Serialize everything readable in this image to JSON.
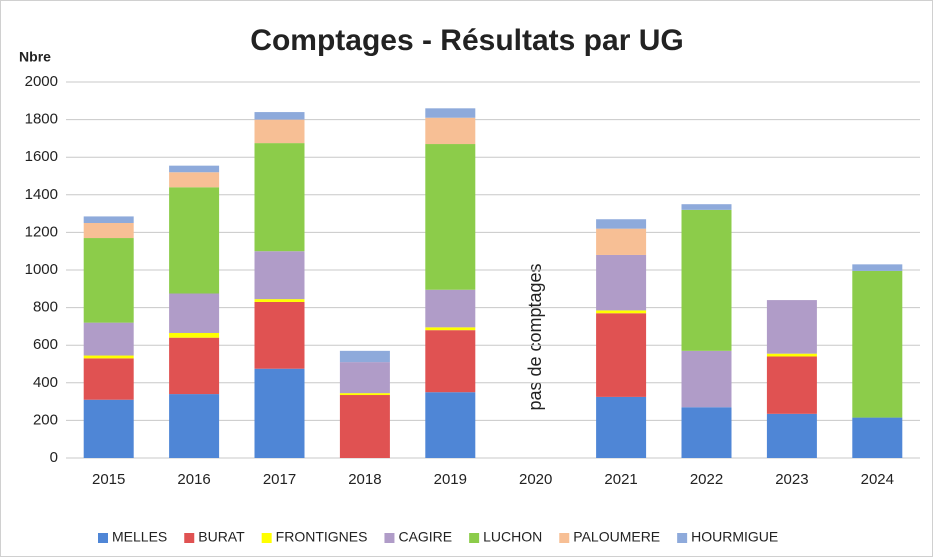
{
  "chart_data": {
    "type": "stacked_bar",
    "title": "Comptages - Résultats par  UG",
    "y_label": "Nbre",
    "annotation": "pas de comptages",
    "categories": [
      "2015",
      "2016",
      "2017",
      "2018",
      "2019",
      "2020",
      "2021",
      "2022",
      "2023",
      "2024"
    ],
    "series": [
      {
        "name": "MELLES",
        "color": "#4f86d6",
        "values": [
          310,
          340,
          475,
          0,
          350,
          null,
          325,
          270,
          235,
          215
        ]
      },
      {
        "name": "BURAT",
        "color": "#e05252",
        "values": [
          220,
          300,
          355,
          335,
          330,
          null,
          445,
          0,
          305,
          0
        ]
      },
      {
        "name": "FRONTIGNES",
        "color": "#ffff00",
        "values": [
          15,
          25,
          15,
          10,
          15,
          null,
          15,
          0,
          15,
          0
        ]
      },
      {
        "name": "CAGIRE",
        "color": "#b09cc8",
        "values": [
          175,
          210,
          255,
          165,
          200,
          null,
          295,
          300,
          285,
          0
        ]
      },
      {
        "name": "LUCHON",
        "color": "#8ccc4a",
        "values": [
          450,
          565,
          575,
          0,
          775,
          null,
          0,
          750,
          0,
          780
        ]
      },
      {
        "name": "PALOUMERE",
        "color": "#f7bf95",
        "values": [
          80,
          80,
          125,
          0,
          140,
          null,
          140,
          0,
          0,
          0
        ]
      },
      {
        "name": "HOURMIGUE",
        "color": "#8eaadb",
        "values": [
          35,
          35,
          40,
          60,
          50,
          null,
          50,
          30,
          0,
          35
        ]
      }
    ],
    "ylim": [
      0,
      2000
    ],
    "yticks": [
      0,
      200,
      400,
      600,
      800,
      1000,
      1200,
      1400,
      1600,
      1800,
      2000
    ],
    "grid": true,
    "legend": "bottom"
  }
}
